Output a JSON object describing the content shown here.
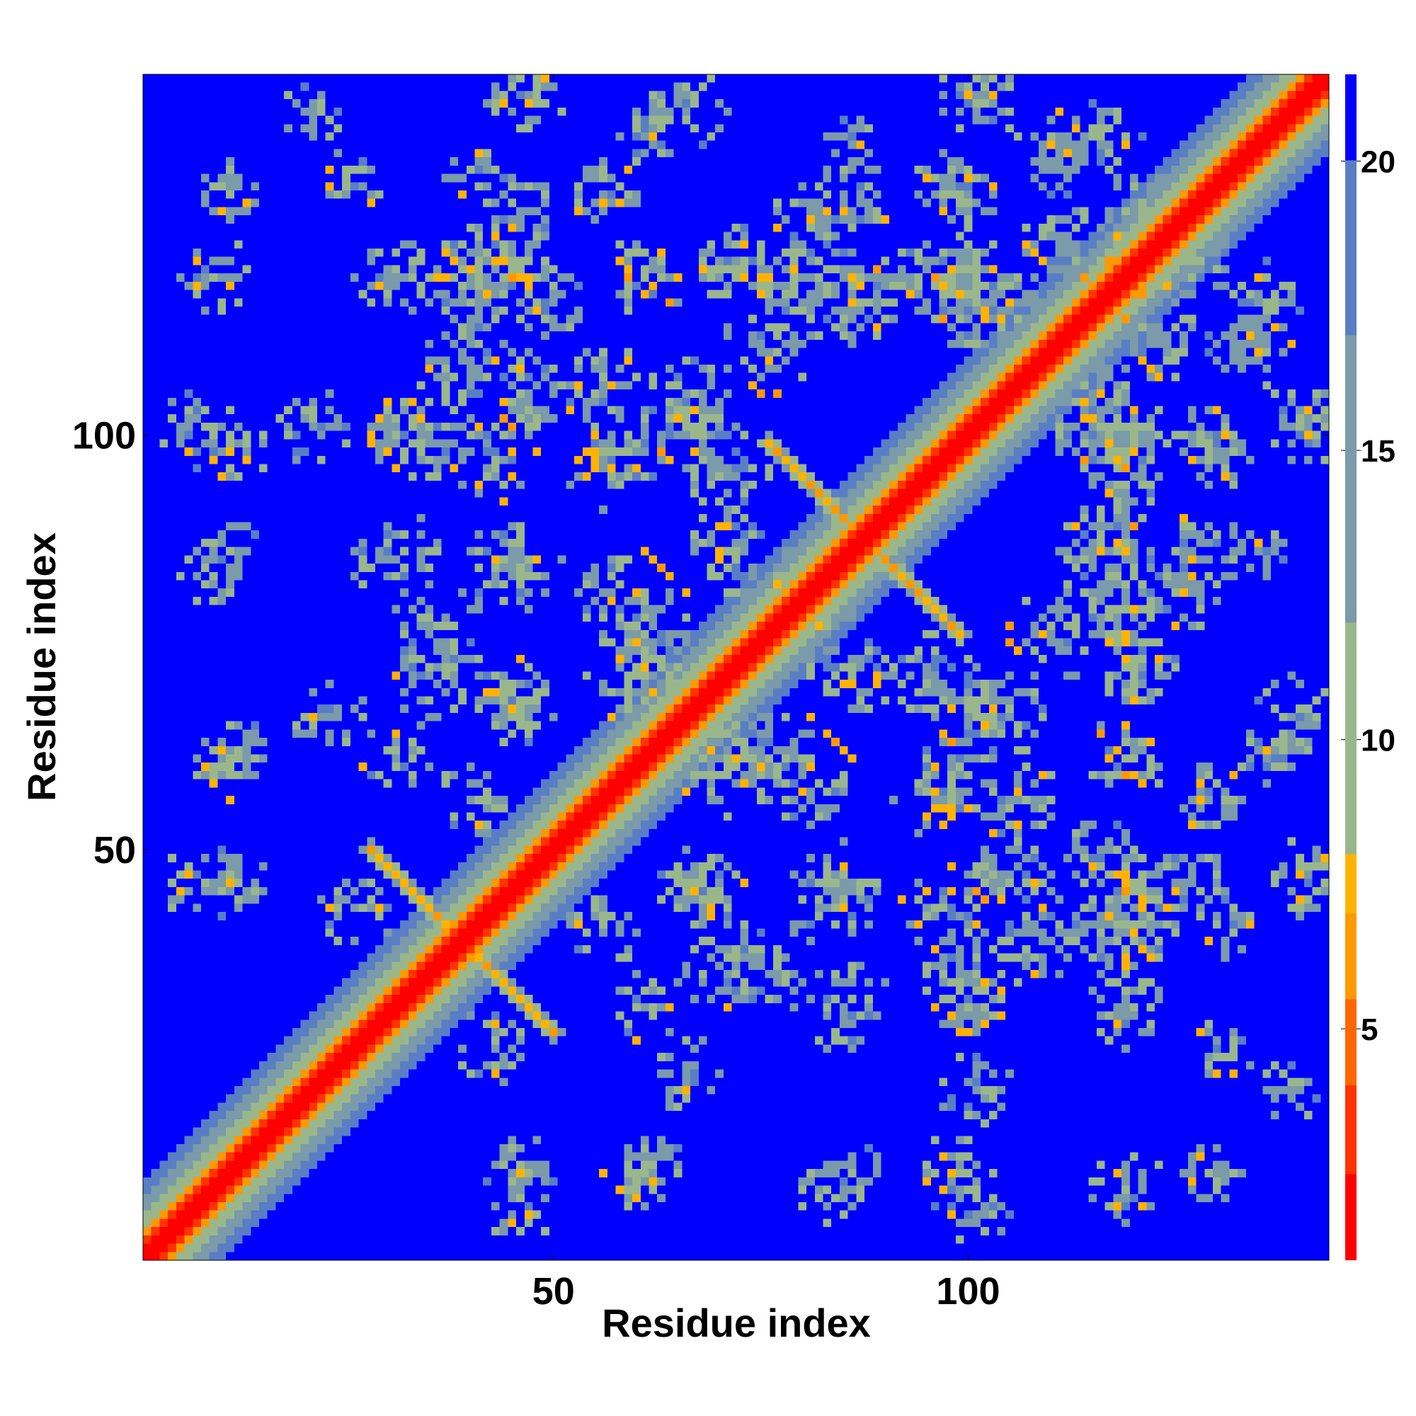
{
  "chart_data": {
    "type": "heatmap",
    "title": "",
    "xlabel": "Residue index",
    "ylabel": "Residue index",
    "xlim": [
      1,
      143
    ],
    "ylim": [
      1,
      143
    ],
    "x_ticks": [
      50,
      100
    ],
    "y_ticks": [
      50,
      100
    ],
    "n_residues": 143,
    "colorbar": {
      "ticks": [
        5,
        10,
        15,
        20
      ],
      "range": [
        1,
        21.5
      ],
      "colors": [
        "#ff0000",
        "#ff3300",
        "#ff6600",
        "#ff9900",
        "#ffb300",
        "#9ab78c",
        "#7b9aaa",
        "#5a7ec4",
        "#0000ff"
      ],
      "boundaries": [
        1,
        2.5,
        4,
        5.5,
        7,
        8,
        12,
        17,
        20,
        21.5
      ]
    },
    "grid": false,
    "symmetric": true,
    "features": {
      "diagonal_band": {
        "from": 1,
        "to": 143,
        "value_at_diagonal": 1
      },
      "antiparallel_contacts": [
        {
          "x_range": [
            27,
            38
          ],
          "y_range": [
            38,
            49
          ]
        },
        {
          "x_range": [
            76,
            87
          ],
          "y_range": [
            87,
            98
          ]
        },
        {
          "x_range": [
            27,
            38
          ],
          "y_range": [
            49,
            60
          ]
        }
      ],
      "parallel_contacts": [
        {
          "x_range": [
            60,
            66
          ],
          "y_range": [
            83,
            91
          ]
        },
        {
          "x_range": [
            42,
            47
          ],
          "y_range": [
            115,
            120
          ]
        },
        {
          "x_range": [
            60,
            65
          ],
          "y_range": [
            115,
            120
          ]
        },
        {
          "x_range": [
            114,
            119
          ],
          "y_range": [
            63,
            68
          ]
        },
        {
          "x_range": [
            114,
            119
          ],
          "y_range": [
            42,
            47
          ]
        }
      ],
      "background_value": 21,
      "palette_ids": [
        "diag",
        "near",
        "mid",
        "far"
      ]
    }
  }
}
